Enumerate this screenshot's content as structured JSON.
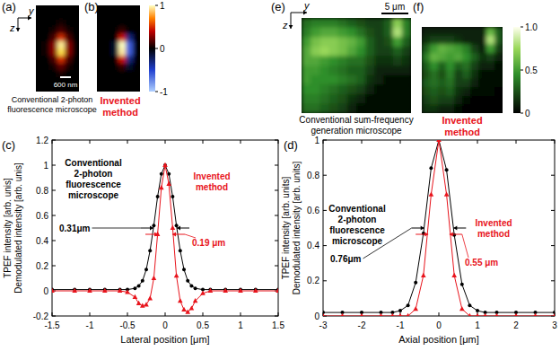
{
  "chart_data": [
    {
      "type": "heatmap",
      "panel_label": "(a)",
      "axis_labels": [
        "y",
        "z"
      ],
      "scale_bar": "600 nm",
      "caption": "Conventional 2-photon fluorescence microscope",
      "color": "hot",
      "color_range": [
        0,
        1
      ],
      "cells": [
        [
          0,
          0,
          0,
          0,
          0,
          0
        ],
        [
          0,
          0,
          0,
          0,
          0,
          0
        ],
        [
          0,
          0,
          0,
          0.05,
          0,
          0
        ],
        [
          0,
          0,
          0.05,
          0.15,
          0.05,
          0
        ],
        [
          0,
          0,
          0.15,
          0.5,
          0.15,
          0
        ],
        [
          0,
          0.05,
          0.3,
          0.95,
          0.3,
          0
        ],
        [
          0,
          0.05,
          0.3,
          0.9,
          0.3,
          0
        ],
        [
          0,
          0,
          0.15,
          0.5,
          0.15,
          0
        ],
        [
          0,
          0,
          0.05,
          0.2,
          0.05,
          0
        ],
        [
          0,
          0,
          0,
          0.05,
          0,
          0
        ],
        [
          0,
          0,
          0,
          0,
          0,
          0
        ],
        [
          0,
          0,
          0,
          0,
          0,
          0
        ]
      ]
    },
    {
      "type": "heatmap",
      "panel_label": "(b)",
      "caption": "Invented method",
      "color": "bwr-hot",
      "color_range": [
        -1,
        1
      ],
      "colorbar_ticks": [
        1,
        0,
        -1
      ],
      "cells": [
        [
          0,
          0,
          0,
          0,
          0,
          0
        ],
        [
          0,
          0,
          0,
          0,
          0,
          0
        ],
        [
          0,
          0,
          0,
          0,
          0,
          0
        ],
        [
          0,
          0,
          0,
          0.1,
          0,
          0
        ],
        [
          0,
          0,
          0,
          0.45,
          -0.3,
          0
        ],
        [
          0,
          0,
          -0.1,
          1,
          -0.6,
          0
        ],
        [
          0,
          0,
          -0.1,
          0.95,
          -0.6,
          0
        ],
        [
          0,
          0,
          0,
          0.45,
          -0.3,
          0
        ],
        [
          0,
          0,
          0,
          0.1,
          -0.1,
          0
        ],
        [
          0,
          0,
          0,
          0,
          0,
          0
        ],
        [
          0,
          0,
          0,
          0,
          0,
          0
        ],
        [
          0,
          0,
          0,
          0,
          0,
          0
        ]
      ]
    },
    {
      "type": "line",
      "panel_label": "(c)",
      "x_label": "Lateral position [μm]",
      "y_label": [
        "TPEF intensity [arb. unis]",
        "Demodulated intensity [arb. unis]"
      ],
      "x": [
        -1.5,
        -1.2,
        -1,
        -0.8,
        -0.6,
        -0.5,
        -0.4,
        -0.35,
        -0.3,
        -0.25,
        -0.2,
        -0.15,
        -0.1,
        -0.05,
        0,
        0.05,
        0.1,
        0.15,
        0.2,
        0.25,
        0.3,
        0.35,
        0.4,
        0.5,
        0.6,
        0.8,
        1,
        1.2,
        1.5
      ],
      "series": [
        {
          "name": "Conventional 2-photon fluorescence microscope",
          "color": "#000000",
          "marker": "circle",
          "line_style": "solid",
          "values": [
            0.01,
            0.01,
            0.01,
            0.01,
            0.01,
            0.01,
            0.02,
            0.04,
            0.08,
            0.17,
            0.32,
            0.52,
            0.75,
            0.93,
            1,
            0.93,
            0.75,
            0.52,
            0.32,
            0.17,
            0.08,
            0.04,
            0.02,
            0.01,
            0.01,
            0.01,
            0.01,
            0.01,
            0.01
          ],
          "fwhm": {
            "value": 0.31,
            "label": "0.31μm"
          }
        },
        {
          "name": "Invented method",
          "color": "#e8141c",
          "marker": "triangle",
          "line_style": "solid",
          "values": [
            0,
            0,
            0,
            0,
            0,
            -0.01,
            -0.05,
            -0.1,
            -0.12,
            -0.11,
            -0.06,
            0.1,
            0.45,
            0.82,
            1,
            0.85,
            0.5,
            0.12,
            -0.08,
            -0.15,
            -0.17,
            -0.14,
            -0.08,
            -0.02,
            0,
            0,
            0,
            0,
            0
          ],
          "fwhm": {
            "value": 0.19,
            "label": "0.19 μm"
          }
        }
      ],
      "xlim": [
        -1.5,
        1.5
      ],
      "xticks": [
        -1.5,
        -1,
        -0.5,
        0,
        0.5,
        1,
        1.5
      ],
      "ylim": [
        -0.2,
        1.2
      ],
      "yticks": [
        -0.2,
        0,
        0.2,
        0.4,
        0.6,
        0.8,
        1,
        1.2
      ]
    },
    {
      "type": "line",
      "panel_label": "(d)",
      "x_label": "Axial position [μm]",
      "y_label": [
        "TPEF intensity [arb. units]",
        "Demodulated intensity [arb. units]"
      ],
      "x": [
        -3,
        -2.5,
        -2,
        -1.5,
        -1.2,
        -1,
        -0.8,
        -0.6,
        -0.4,
        -0.2,
        0,
        0.2,
        0.4,
        0.6,
        0.8,
        1,
        1.2,
        1.5,
        2,
        2.5,
        3
      ],
      "series": [
        {
          "name": "Conventional 2-photon fluorescence microscope",
          "color": "#000000",
          "marker": "circle",
          "line_style": "solid",
          "values": [
            0.02,
            0.02,
            0.02,
            0.02,
            0.02,
            0.03,
            0.06,
            0.19,
            0.47,
            0.84,
            1,
            0.83,
            0.46,
            0.18,
            0.06,
            0.03,
            0.02,
            0.02,
            0.02,
            0.02,
            0.02
          ],
          "fwhm": {
            "value": 0.76,
            "label": "0.76μm"
          }
        },
        {
          "name": "Invented method",
          "color": "#e8141c",
          "marker": "triangle",
          "line_style": "solid",
          "values": [
            0,
            0,
            0,
            0,
            0,
            0,
            0,
            0.04,
            0.23,
            0.69,
            1,
            0.69,
            0.23,
            0.04,
            0,
            0,
            0,
            0,
            0,
            0,
            0
          ],
          "fwhm": {
            "value": 0.55,
            "label": "0.55 μm"
          }
        }
      ],
      "xlim": [
        -3,
        3
      ],
      "xticks": [
        -3,
        -2,
        -1,
        0,
        1,
        2,
        3
      ],
      "ylim": [
        0,
        1
      ],
      "yticks": [
        0,
        0.2,
        0.4,
        0.6,
        0.8,
        1
      ]
    },
    {
      "type": "heatmap",
      "panel_label": "(e)",
      "axis_labels": [
        "y",
        "z"
      ],
      "scale_bar": "5 μm",
      "caption": "Conventional sum-frequency generation microscope",
      "color": "green",
      "color_range": [
        0,
        1
      ],
      "cells": [
        [
          0.35,
          0.4,
          0.4,
          0.4,
          0.35,
          0.3,
          0.25,
          0.2,
          0.2,
          0.3,
          0.7,
          0.4
        ],
        [
          0.4,
          0.5,
          0.55,
          0.55,
          0.5,
          0.45,
          0.35,
          0.25,
          0.2,
          0.3,
          0.8,
          0.4
        ],
        [
          0.5,
          0.65,
          0.7,
          0.7,
          0.65,
          0.6,
          0.5,
          0.3,
          0.2,
          0.25,
          0.5,
          0.3
        ],
        [
          0.55,
          0.7,
          0.75,
          0.7,
          0.65,
          0.55,
          0.45,
          0.3,
          0.2,
          0.2,
          0.3,
          0.2
        ],
        [
          0.55,
          0.55,
          0.5,
          0.45,
          0.4,
          0.35,
          0.35,
          0.25,
          0.15,
          0.15,
          0.2,
          0.15
        ],
        [
          0.5,
          0.5,
          0.45,
          0.4,
          0.35,
          0.3,
          0.3,
          0.2,
          0.1,
          0.1,
          0.1,
          0.1
        ],
        [
          0.5,
          0.45,
          0.45,
          0.45,
          0.4,
          0.35,
          0.3,
          0.15,
          0.1,
          0.05,
          0.05,
          0.05
        ],
        [
          0.45,
          0.45,
          0.4,
          0.35,
          0.3,
          0.25,
          0.2,
          0.1,
          0.05,
          0.05,
          0.05,
          0.05
        ],
        [
          0.4,
          0.4,
          0.35,
          0.3,
          0.25,
          0.15,
          0.1,
          0.05,
          0.05,
          0.05,
          0.05,
          0.05
        ],
        [
          0.35,
          0.35,
          0.3,
          0.25,
          0.2,
          0.1,
          0.05,
          0.05,
          0.05,
          0.05,
          0.05,
          0.05
        ]
      ]
    },
    {
      "type": "heatmap",
      "panel_label": "(f)",
      "caption": "Invented method",
      "color": "green",
      "color_range": [
        0,
        1
      ],
      "colorbar_ticks": [
        {
          "value": 1,
          "label": "1.0"
        },
        0.5,
        0
      ],
      "cells": [
        [
          0.1,
          0.1,
          0.1,
          0.1,
          0.1,
          0.1,
          0.1,
          0.1,
          0.6,
          0.3
        ],
        [
          0.15,
          0.2,
          0.2,
          0.2,
          0.15,
          0.1,
          0.1,
          0.1,
          0.8,
          0.3
        ],
        [
          0.3,
          0.5,
          0.6,
          0.55,
          0.5,
          0.4,
          0.2,
          0.1,
          0.5,
          0.2
        ],
        [
          0.4,
          0.6,
          0.55,
          0.5,
          0.55,
          0.45,
          0.3,
          0.15,
          0.2,
          0.1
        ],
        [
          0.3,
          0.45,
          0.3,
          0.45,
          0.3,
          0.35,
          0.2,
          0.1,
          0.1,
          0.05
        ],
        [
          0.25,
          0.35,
          0.25,
          0.4,
          0.2,
          0.3,
          0.15,
          0.05,
          0.05,
          0.05
        ],
        [
          0.3,
          0.35,
          0.3,
          0.35,
          0.2,
          0.2,
          0.1,
          0.05,
          0.05,
          0.05
        ],
        [
          0.25,
          0.3,
          0.25,
          0.3,
          0.15,
          0.1,
          0.05,
          0.05,
          0.05,
          0
        ],
        [
          0.2,
          0.25,
          0.2,
          0.2,
          0.1,
          0.05,
          0,
          0,
          0,
          0
        ],
        [
          0.15,
          0.15,
          0.1,
          0.1,
          0.05,
          0,
          0,
          0,
          0,
          0
        ]
      ]
    }
  ]
}
